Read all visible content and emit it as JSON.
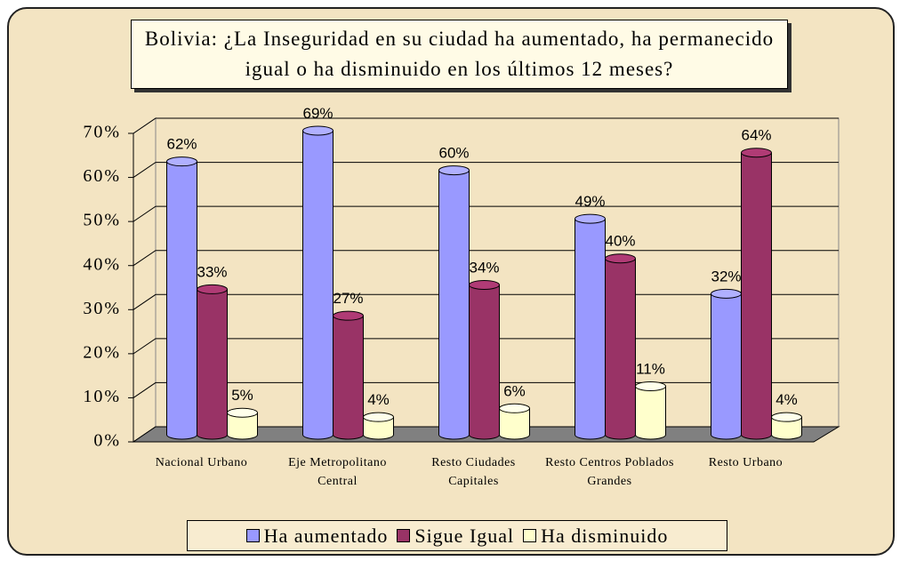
{
  "chart_data": {
    "type": "bar3d",
    "title": "Bolivia: ¿La Inseguridad en su ciudad ha aumentado, ha permanecido igual o ha disminuido en los últimos 12 meses?",
    "categories": [
      "Nacional Urbano",
      "Eje Metropolitano Central",
      "Resto Ciudades Capitales",
      "Resto Centros Poblados Grandes",
      "Resto Urbano"
    ],
    "series": [
      {
        "name": "Ha aumentado",
        "color": "#9999ff",
        "values": [
          62,
          69,
          60,
          49,
          32
        ],
        "value_labels": [
          "62%",
          "69%",
          "60%",
          "49%",
          "32%"
        ]
      },
      {
        "name": "Sigue Igual",
        "color": "#993366",
        "values": [
          33,
          27,
          34,
          40,
          64
        ],
        "value_labels": [
          "33%",
          "27%",
          "34%",
          "40%",
          "64%"
        ]
      },
      {
        "name": "Ha disminuido",
        "color": "#ffffcc",
        "values": [
          5,
          4,
          6,
          11,
          4
        ],
        "value_labels": [
          "5%",
          "4%",
          "6%",
          "11%",
          "4%"
        ]
      }
    ],
    "ylim": [
      0,
      70
    ],
    "yticks": [
      {
        "value": 0,
        "label": "0%"
      },
      {
        "value": 10,
        "label": "10%"
      },
      {
        "value": 20,
        "label": "20%"
      },
      {
        "value": 30,
        "label": "30%"
      },
      {
        "value": 40,
        "label": "40%"
      },
      {
        "value": 50,
        "label": "50%"
      },
      {
        "value": 60,
        "label": "60%"
      },
      {
        "value": 70,
        "label": "70%"
      }
    ],
    "grid": true,
    "legend": "bottom"
  }
}
